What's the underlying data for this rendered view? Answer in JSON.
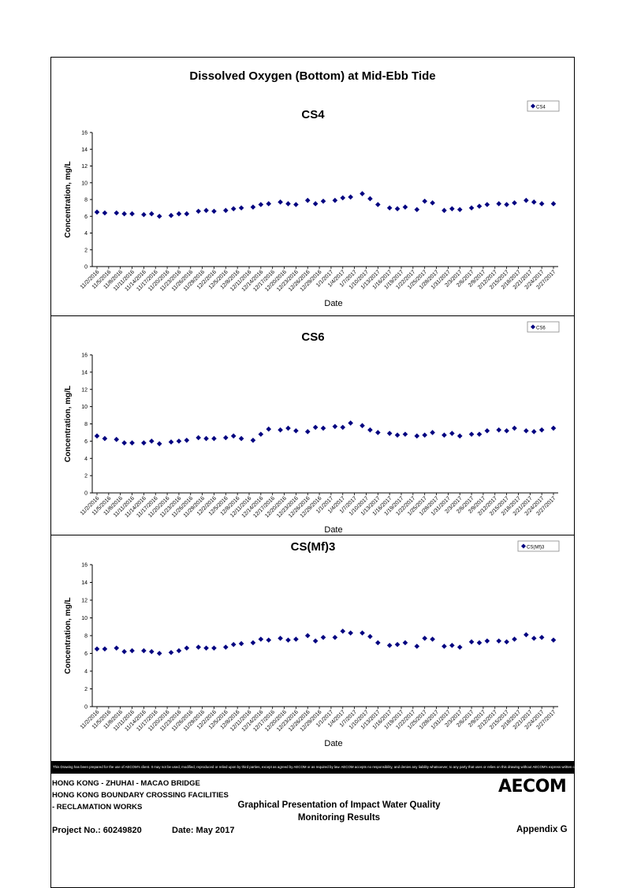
{
  "page": {
    "title": "Dissolved Oxygen (Bottom) at Mid-Ebb Tide",
    "disclaimer": "This Drawing has been prepared for the use of AECOM's client. It may not be used, modified, reproduced or relied upon by third parties, except as agreed by AECOM or as required by law. AECOM accepts no responsibility, and denies any liability whatsoever, to any party that uses or relies on this drawing without AECOM's express written consent.",
    "footer": {
      "line1": "HONG KONG - ZHUHAI - MACAO BRIDGE",
      "line2": "HONG KONG BOUNDARY CROSSING FACILITIES",
      "line3": "- RECLAMATION WORKS",
      "center1": "Graphical Presentation of Impact Water Quality",
      "center2": "Monitoring Results",
      "project": "Project No.: 60249820",
      "date": "Date: May 2017",
      "appendix": "Appendix G",
      "logo": "AECOM"
    }
  },
  "colors": {
    "marker": "#000080",
    "frame": "#000000",
    "disclaimer_bg": "#000000"
  },
  "chart_data": [
    {
      "type": "scatter",
      "title": "CS4",
      "xlabel": "Date",
      "ylabel": "Concentration, mg/L",
      "ylim": [
        0,
        16
      ],
      "yticks": [
        0,
        2,
        4,
        6,
        8,
        10,
        12,
        14,
        16
      ],
      "legend": "top-right",
      "xticks": [
        "11/2/2016",
        "11/5/2016",
        "11/8/2016",
        "11/11/2016",
        "11/14/2016",
        "11/17/2016",
        "11/20/2016",
        "11/23/2016",
        "11/26/2016",
        "11/29/2016",
        "12/2/2016",
        "12/5/2016",
        "12/8/2016",
        "12/11/2016",
        "12/14/2016",
        "12/17/2016",
        "12/20/2016",
        "12/23/2016",
        "12/26/2016",
        "12/29/2016",
        "1/1/2017",
        "1/4/2017",
        "1/7/2017",
        "1/10/2017",
        "1/13/2017",
        "1/16/2017",
        "1/19/2017",
        "1/22/2017",
        "1/25/2017",
        "1/28/2017",
        "1/31/2017",
        "2/3/2017",
        "2/6/2017",
        "2/9/2017",
        "2/12/2017",
        "2/15/2017",
        "2/18/2017",
        "2/21/2017",
        "2/24/2017",
        "2/27/2017"
      ],
      "series": [
        {
          "name": "CS4",
          "x": [
            "11/2/2016",
            "11/4/2016",
            "11/7/2016",
            "11/9/2016",
            "11/11/2016",
            "11/14/2016",
            "11/16/2016",
            "11/18/2016",
            "11/21/2016",
            "11/23/2016",
            "11/25/2016",
            "11/28/2016",
            "11/30/2016",
            "12/2/2016",
            "12/5/2016",
            "12/7/2016",
            "12/9/2016",
            "12/12/2016",
            "12/14/2016",
            "12/16/2016",
            "12/19/2016",
            "12/21/2016",
            "12/23/2016",
            "12/26/2016",
            "12/28/2016",
            "12/30/2016",
            "1/2/2017",
            "1/4/2017",
            "1/6/2017",
            "1/9/2017",
            "1/11/2017",
            "1/13/2017",
            "1/16/2017",
            "1/18/2017",
            "1/20/2017",
            "1/23/2017",
            "1/25/2017",
            "1/27/2017",
            "1/30/2017",
            "2/1/2017",
            "2/3/2017",
            "2/6/2017",
            "2/8/2017",
            "2/10/2017",
            "2/13/2017",
            "2/15/2017",
            "2/17/2017",
            "2/20/2017",
            "2/22/2017",
            "2/24/2017",
            "2/27/2017"
          ],
          "y": [
            6.5,
            6.4,
            6.4,
            6.3,
            6.3,
            6.2,
            6.3,
            6.0,
            6.1,
            6.3,
            6.3,
            6.6,
            6.7,
            6.6,
            6.7,
            6.9,
            7.0,
            7.1,
            7.4,
            7.5,
            7.7,
            7.5,
            7.4,
            7.9,
            7.5,
            7.8,
            7.9,
            8.2,
            8.3,
            8.7,
            8.1,
            7.4,
            7.0,
            6.9,
            7.1,
            6.8,
            7.8,
            7.6,
            6.7,
            6.9,
            6.8,
            7.0,
            7.2,
            7.4,
            7.5,
            7.4,
            7.6,
            7.9,
            7.7,
            7.5,
            7.5
          ]
        }
      ]
    },
    {
      "type": "scatter",
      "title": "CS6",
      "xlabel": "Date",
      "ylabel": "Concentration, mg/L",
      "ylim": [
        0,
        16
      ],
      "yticks": [
        0,
        2,
        4,
        6,
        8,
        10,
        12,
        14,
        16
      ],
      "legend": "top-right",
      "xticks": [
        "11/2/2016",
        "11/5/2016",
        "11/8/2016",
        "11/11/2016",
        "11/14/2016",
        "11/17/2016",
        "11/20/2016",
        "11/23/2016",
        "11/26/2016",
        "11/29/2016",
        "12/2/2016",
        "12/5/2016",
        "12/8/2016",
        "12/11/2016",
        "12/14/2016",
        "12/17/2016",
        "12/20/2016",
        "12/23/2016",
        "12/26/2016",
        "12/29/2016",
        "1/1/2017",
        "1/4/2017",
        "1/7/2017",
        "1/10/2017",
        "1/13/2017",
        "1/16/2017",
        "1/19/2017",
        "1/22/2017",
        "1/25/2017",
        "1/28/2017",
        "1/31/2017",
        "2/3/2017",
        "2/6/2017",
        "2/9/2017",
        "2/12/2017",
        "2/15/2017",
        "2/18/2017",
        "2/21/2017",
        "2/24/2017",
        "2/27/2017"
      ],
      "series": [
        {
          "name": "CS6",
          "x": [
            "11/2/2016",
            "11/4/2016",
            "11/7/2016",
            "11/9/2016",
            "11/11/2016",
            "11/14/2016",
            "11/16/2016",
            "11/18/2016",
            "11/21/2016",
            "11/23/2016",
            "11/25/2016",
            "11/28/2016",
            "11/30/2016",
            "12/2/2016",
            "12/5/2016",
            "12/7/2016",
            "12/9/2016",
            "12/12/2016",
            "12/14/2016",
            "12/16/2016",
            "12/19/2016",
            "12/21/2016",
            "12/23/2016",
            "12/26/2016",
            "12/28/2016",
            "12/30/2016",
            "1/2/2017",
            "1/4/2017",
            "1/6/2017",
            "1/9/2017",
            "1/11/2017",
            "1/13/2017",
            "1/16/2017",
            "1/18/2017",
            "1/20/2017",
            "1/23/2017",
            "1/25/2017",
            "1/27/2017",
            "1/30/2017",
            "2/1/2017",
            "2/3/2017",
            "2/6/2017",
            "2/8/2017",
            "2/10/2017",
            "2/13/2017",
            "2/15/2017",
            "2/17/2017",
            "2/20/2017",
            "2/22/2017",
            "2/24/2017",
            "2/27/2017"
          ],
          "y": [
            6.6,
            6.3,
            6.2,
            5.8,
            5.8,
            5.8,
            6.0,
            5.7,
            5.9,
            6.0,
            6.1,
            6.4,
            6.3,
            6.3,
            6.4,
            6.6,
            6.3,
            6.1,
            6.8,
            7.4,
            7.3,
            7.5,
            7.2,
            7.1,
            7.6,
            7.5,
            7.7,
            7.6,
            8.1,
            7.8,
            7.3,
            7.0,
            6.9,
            6.7,
            6.8,
            6.6,
            6.7,
            7.0,
            6.7,
            6.9,
            6.6,
            6.8,
            6.8,
            7.2,
            7.3,
            7.2,
            7.5,
            7.2,
            7.1,
            7.3,
            7.5
          ]
        }
      ]
    },
    {
      "type": "scatter",
      "title": "CS(Mf)3",
      "xlabel": "Date",
      "ylabel": "Concentration, mg/L",
      "ylim": [
        0,
        16
      ],
      "yticks": [
        0,
        2,
        4,
        6,
        8,
        10,
        12,
        14,
        16
      ],
      "legend": "top-right",
      "xticks": [
        "11/2/2016",
        "11/5/2016",
        "11/8/2016",
        "11/11/2016",
        "11/14/2016",
        "11/17/2016",
        "11/20/2016",
        "11/23/2016",
        "11/26/2016",
        "11/29/2016",
        "12/2/2016",
        "12/5/2016",
        "12/8/2016",
        "12/11/2016",
        "12/14/2016",
        "12/17/2016",
        "12/20/2016",
        "12/23/2016",
        "12/26/2016",
        "12/29/2016",
        "1/1/2017",
        "1/4/2017",
        "1/7/2017",
        "1/10/2017",
        "1/13/2017",
        "1/16/2017",
        "1/19/2017",
        "1/22/2017",
        "1/25/2017",
        "1/28/2017",
        "1/31/2017",
        "2/3/2017",
        "2/6/2017",
        "2/9/2017",
        "2/12/2017",
        "2/15/2017",
        "2/18/2017",
        "2/21/2017",
        "2/24/2017",
        "2/27/2017"
      ],
      "series": [
        {
          "name": "CS(Mf)3",
          "x": [
            "11/2/2016",
            "11/4/2016",
            "11/7/2016",
            "11/9/2016",
            "11/11/2016",
            "11/14/2016",
            "11/16/2016",
            "11/18/2016",
            "11/21/2016",
            "11/23/2016",
            "11/25/2016",
            "11/28/2016",
            "11/30/2016",
            "12/2/2016",
            "12/5/2016",
            "12/7/2016",
            "12/9/2016",
            "12/12/2016",
            "12/14/2016",
            "12/16/2016",
            "12/19/2016",
            "12/21/2016",
            "12/23/2016",
            "12/26/2016",
            "12/28/2016",
            "12/30/2016",
            "1/2/2017",
            "1/4/2017",
            "1/6/2017",
            "1/9/2017",
            "1/11/2017",
            "1/13/2017",
            "1/16/2017",
            "1/18/2017",
            "1/20/2017",
            "1/23/2017",
            "1/25/2017",
            "1/27/2017",
            "1/30/2017",
            "2/1/2017",
            "2/3/2017",
            "2/6/2017",
            "2/8/2017",
            "2/10/2017",
            "2/13/2017",
            "2/15/2017",
            "2/17/2017",
            "2/20/2017",
            "2/22/2017",
            "2/24/2017",
            "2/27/2017"
          ],
          "y": [
            6.5,
            6.5,
            6.6,
            6.2,
            6.3,
            6.3,
            6.2,
            6.0,
            6.1,
            6.3,
            6.6,
            6.7,
            6.6,
            6.6,
            6.7,
            7.0,
            7.1,
            7.2,
            7.6,
            7.5,
            7.7,
            7.5,
            7.6,
            8.0,
            7.4,
            7.8,
            7.8,
            8.5,
            8.3,
            8.3,
            7.9,
            7.2,
            6.9,
            7.0,
            7.2,
            6.8,
            7.7,
            7.6,
            6.8,
            6.9,
            6.7,
            7.3,
            7.2,
            7.4,
            7.4,
            7.3,
            7.6,
            8.1,
            7.7,
            7.8,
            7.5
          ]
        }
      ]
    }
  ]
}
